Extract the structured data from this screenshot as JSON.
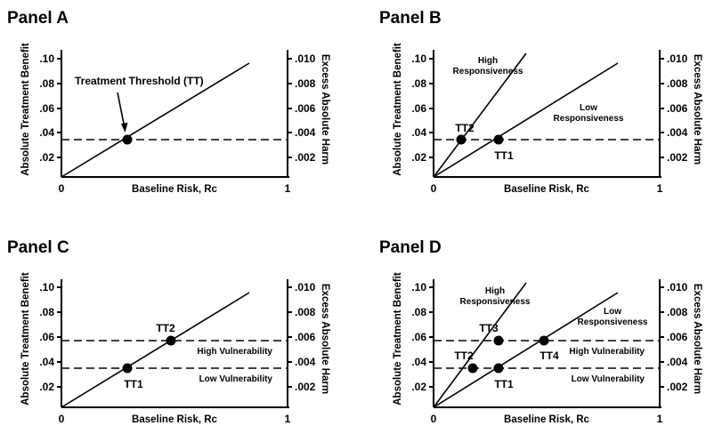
{
  "axes": {
    "left_label": "Absolute Treatment Benefit",
    "right_label": "Excess Absolute Harm",
    "x_label": "Baseline Risk, Rc",
    "x_min_label": "0",
    "x_max_label": "1",
    "left_ticks": [
      ".02",
      ".04",
      ".06",
      ".08",
      ".10"
    ],
    "right_ticks": [
      ".002",
      ".004",
      ".006",
      ".008",
      ".010"
    ]
  },
  "panels": {
    "A": {
      "title": "Panel A",
      "annotation": "Treatment Threshold (TT)"
    },
    "B": {
      "title": "Panel B",
      "high_line1": "High",
      "high_line2": "Responsiveness",
      "low_line1": "Low",
      "low_line2": "Responsiveness",
      "tt2": "TT2",
      "tt1": "TT1"
    },
    "C": {
      "title": "Panel C",
      "tt2": "TT2",
      "tt1": "TT1",
      "high_vuln": "High Vulnerability",
      "low_vuln": "Low Vulnerability"
    },
    "D": {
      "title": "Panel D",
      "high_line1": "High",
      "high_line2": "Responsiveness",
      "low_line1": "Low",
      "low_line2": "Responsiveness",
      "tt3": "TT3",
      "tt2": "TT2",
      "tt4": "TT4",
      "tt1": "TT1",
      "high_vuln": "High Vulnerability",
      "low_vuln": "Low Vulnerability"
    }
  }
}
